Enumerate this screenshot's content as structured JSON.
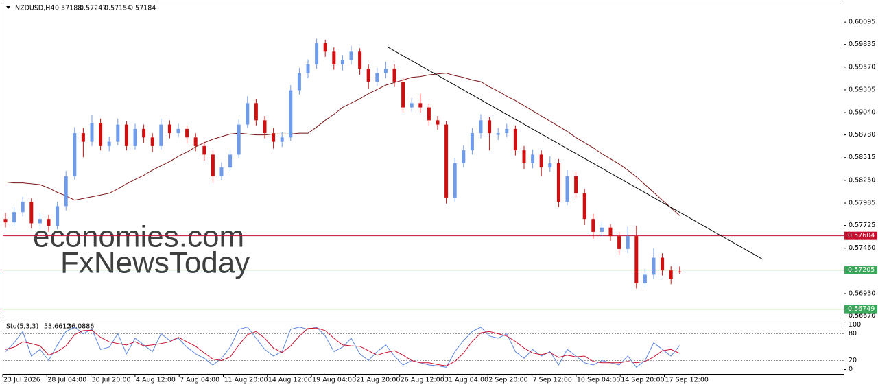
{
  "chart_data": {
    "type": "candlestick",
    "symbol": "NZDUSD,H4",
    "up_color": "#6f9be8",
    "down_color": "#d01010",
    "ylim": [
      0.5665,
      0.6032
    ],
    "yticks": [
      0.60095,
      0.59835,
      {
        "value": 0.5957,
        "label": "0.59570"
      },
      0.59305,
      {
        "value": 0.5904,
        "label": "0.59040"
      },
      {
        "value": 0.5878,
        "label": "0.58780"
      },
      0.58515,
      {
        "value": 0.5825,
        "label": "0.58250"
      },
      0.57985,
      0.57725,
      {
        "value": 0.5746,
        "label": "0.57460"
      },
      {
        "value": 0.5693,
        "label": "0.56930"
      },
      {
        "value": 0.5667,
        "label": "0.56670"
      }
    ],
    "time_labels": [
      "23 Jul 2026",
      "28 Jul 04:00",
      "30 Jul 20:00",
      "4 Aug 12:00",
      "7 Aug 04:00",
      "11 Aug 20:00",
      "14 Aug 12:00",
      "19 Aug 04:00",
      "21 Aug 20:00",
      "26 Aug 12:00",
      "31 Aug 04:00",
      "2 Sep 20:00",
      "7 Sep 12:00",
      "10 Sep 04:00",
      "14 Sep 20:00",
      "17 Sep 12:00"
    ],
    "candles": [
      [
        0.578,
        0.5787,
        0.577,
        0.5776
      ],
      [
        0.5776,
        0.5794,
        0.5772,
        0.5788
      ],
      [
        0.5788,
        0.5806,
        0.5783,
        0.58
      ],
      [
        0.58,
        0.5804,
        0.5769,
        0.5775
      ],
      [
        0.5775,
        0.5787,
        0.5768,
        0.578
      ],
      [
        0.578,
        0.5785,
        0.5765,
        0.5772
      ],
      [
        0.5772,
        0.58,
        0.5768,
        0.5795
      ],
      [
        0.5795,
        0.5836,
        0.579,
        0.583
      ],
      [
        0.583,
        0.5887,
        0.5826,
        0.588
      ],
      [
        0.588,
        0.5886,
        0.5852,
        0.587
      ],
      [
        0.587,
        0.5901,
        0.5865,
        0.5892
      ],
      [
        0.5892,
        0.5897,
        0.586,
        0.5865
      ],
      [
        0.5865,
        0.5876,
        0.5859,
        0.587
      ],
      [
        0.587,
        0.5897,
        0.5866,
        0.589
      ],
      [
        0.589,
        0.5894,
        0.586,
        0.5865
      ],
      [
        0.5865,
        0.5891,
        0.5861,
        0.5885
      ],
      [
        0.5885,
        0.589,
        0.5869,
        0.5875
      ],
      [
        0.5875,
        0.588,
        0.5858,
        0.5865
      ],
      [
        0.5865,
        0.5897,
        0.5861,
        0.589
      ],
      [
        0.589,
        0.5895,
        0.5874,
        0.588
      ],
      [
        0.588,
        0.5891,
        0.5875,
        0.5885
      ],
      [
        0.5885,
        0.5889,
        0.5868,
        0.5875
      ],
      [
        0.5875,
        0.588,
        0.5859,
        0.5865
      ],
      [
        0.5865,
        0.587,
        0.5848,
        0.5855
      ],
      [
        0.5855,
        0.586,
        0.5822,
        0.583
      ],
      [
        0.583,
        0.5846,
        0.5825,
        0.584
      ],
      [
        0.584,
        0.5861,
        0.5836,
        0.5855
      ],
      [
        0.5855,
        0.5896,
        0.5851,
        0.589
      ],
      [
        0.589,
        0.5923,
        0.5886,
        0.5915
      ],
      [
        0.5915,
        0.592,
        0.5889,
        0.5895
      ],
      [
        0.5895,
        0.59,
        0.5874,
        0.588
      ],
      [
        0.588,
        0.5886,
        0.5862,
        0.587
      ],
      [
        0.587,
        0.5881,
        0.5864,
        0.5875
      ],
      [
        0.5875,
        0.5936,
        0.5871,
        0.593
      ],
      [
        0.593,
        0.5956,
        0.5925,
        0.595
      ],
      [
        0.595,
        0.5966,
        0.5944,
        0.596
      ],
      [
        0.596,
        0.599,
        0.5955,
        0.5985
      ],
      [
        0.5985,
        0.5989,
        0.5969,
        0.5975
      ],
      [
        0.5975,
        0.598,
        0.5954,
        0.596
      ],
      [
        0.596,
        0.5971,
        0.5953,
        0.5965
      ],
      [
        0.5965,
        0.5982,
        0.596,
        0.5975
      ],
      [
        0.5975,
        0.5979,
        0.5948,
        0.5955
      ],
      [
        0.5955,
        0.596,
        0.5932,
        0.594
      ],
      [
        0.594,
        0.5956,
        0.5935,
        0.595
      ],
      [
        0.595,
        0.5963,
        0.5944,
        0.5955
      ],
      [
        0.5955,
        0.596,
        0.5934,
        0.594
      ],
      [
        0.594,
        0.5944,
        0.5904,
        0.591
      ],
      [
        0.591,
        0.5921,
        0.5905,
        0.5915
      ],
      [
        0.5915,
        0.5926,
        0.5904,
        0.591
      ],
      [
        0.591,
        0.5914,
        0.5889,
        0.5895
      ],
      [
        0.5895,
        0.59,
        0.5884,
        0.589
      ],
      [
        0.589,
        0.5894,
        0.5798,
        0.5805
      ],
      [
        0.5805,
        0.5851,
        0.58,
        0.5845
      ],
      [
        0.5845,
        0.5866,
        0.584,
        0.586
      ],
      [
        0.586,
        0.5886,
        0.5855,
        0.588
      ],
      [
        0.588,
        0.5902,
        0.5874,
        0.5895
      ],
      [
        0.5895,
        0.5899,
        0.586,
        0.588
      ],
      [
        0.5878,
        0.5886,
        0.5872,
        0.588
      ],
      [
        0.588,
        0.5891,
        0.5875,
        0.5885
      ],
      [
        0.5885,
        0.5889,
        0.5854,
        0.586
      ],
      [
        0.586,
        0.5865,
        0.5838,
        0.5845
      ],
      [
        0.5845,
        0.5861,
        0.5839,
        0.5855
      ],
      [
        0.5855,
        0.586,
        0.583,
        0.584
      ],
      [
        0.584,
        0.5853,
        0.5835,
        0.5845
      ],
      [
        0.5845,
        0.585,
        0.5794,
        0.58
      ],
      [
        0.58,
        0.5837,
        0.5796,
        0.583
      ],
      [
        0.583,
        0.5835,
        0.5804,
        0.581
      ],
      [
        0.581,
        0.5815,
        0.5773,
        0.578
      ],
      [
        0.578,
        0.5786,
        0.5757,
        0.5765
      ],
      [
        0.5765,
        0.5777,
        0.5759,
        0.577
      ],
      [
        0.577,
        0.5774,
        0.5754,
        0.576
      ],
      [
        0.576,
        0.5765,
        0.5738,
        0.5745
      ],
      [
        0.5745,
        0.5771,
        0.574,
        0.576
      ],
      [
        0.576,
        0.5772,
        0.5699,
        0.5705
      ],
      [
        0.5705,
        0.5722,
        0.57,
        0.5715
      ],
      [
        0.5715,
        0.5746,
        0.571,
        0.5735
      ],
      [
        0.5735,
        0.574,
        0.5714,
        0.572
      ],
      [
        0.572,
        0.5725,
        0.5704,
        0.571
      ],
      [
        0.57188,
        0.57247,
        0.57154,
        0.57184
      ]
    ],
    "ma": {
      "color": "#7a1414",
      "values": [
        0.5823,
        0.5822,
        0.5822,
        0.5821,
        0.582,
        0.5816,
        0.5811,
        0.5807,
        0.5802,
        0.5804,
        0.5806,
        0.5808,
        0.581,
        0.5815,
        0.5821,
        0.5826,
        0.5831,
        0.5837,
        0.5842,
        0.5847,
        0.5853,
        0.5858,
        0.5864,
        0.5869,
        0.5873,
        0.5876,
        0.5879,
        0.588,
        0.5879,
        0.5878,
        0.5878,
        0.5879,
        0.5879,
        0.5879,
        0.588,
        0.588,
        0.5887,
        0.5895,
        0.5902,
        0.591,
        0.5915,
        0.592,
        0.5926,
        0.5931,
        0.5936,
        0.5939,
        0.5942,
        0.5945,
        0.5946,
        0.5948,
        0.5949,
        0.595,
        0.5947,
        0.5945,
        0.5942,
        0.594,
        0.5934,
        0.5929,
        0.5923,
        0.5918,
        0.5912,
        0.5906,
        0.59,
        0.5894,
        0.5888,
        0.5882,
        0.5875,
        0.5869,
        0.5863,
        0.5856,
        0.585,
        0.5844,
        0.5837,
        0.5829,
        0.582,
        0.5811,
        0.5802,
        0.5793,
        0.5784
      ]
    },
    "trendline": {
      "color": "#000000",
      "values": [
        0.598,
        0.5733
      ]
    },
    "levels": [
      {
        "value": 0.57604,
        "color": "#c8102e"
      },
      {
        "value": 0.57205,
        "color": "#3aa85a"
      },
      {
        "value": 0.56749,
        "color": "#3aa85a"
      }
    ],
    "watermark": [
      "economies.com",
      "FxNewsToday"
    ],
    "stoch": {
      "title": "Sto(5,3,3)",
      "ylim": [
        -10,
        110
      ],
      "yticks": [
        100,
        80,
        20,
        0
      ],
      "k": {
        "color": "#5a86e0",
        "values": [
          40,
          60,
          85,
          30,
          45,
          20,
          55,
          85,
          95,
          80,
          90,
          45,
          50,
          80,
          35,
          70,
          55,
          40,
          80,
          65,
          70,
          50,
          35,
          25,
          10,
          25,
          50,
          90,
          95,
          70,
          45,
          30,
          40,
          90,
          95,
          90,
          95,
          75,
          40,
          50,
          70,
          35,
          20,
          40,
          55,
          30,
          10,
          20,
          15,
          10,
          8,
          5,
          40,
          65,
          85,
          95,
          75,
          70,
          80,
          40,
          25,
          45,
          30,
          40,
          10,
          45,
          30,
          15,
          10,
          20,
          15,
          10,
          30,
          5,
          20,
          60,
          45,
          30,
          53.6612
        ]
      },
      "d": {
        "color": "#c8102e",
        "values": [
          45,
          50,
          62,
          58,
          53,
          32,
          40,
          53,
          78,
          87,
          88,
          72,
          62,
          58,
          55,
          62,
          53,
          55,
          58,
          62,
          72,
          62,
          52,
          37,
          23,
          20,
          28,
          55,
          78,
          85,
          70,
          48,
          38,
          53,
          75,
          92,
          93,
          87,
          70,
          55,
          53,
          52,
          42,
          32,
          38,
          42,
          32,
          20,
          15,
          15,
          11,
          8,
          18,
          37,
          63,
          82,
          85,
          80,
          75,
          63,
          48,
          37,
          33,
          38,
          27,
          32,
          28,
          30,
          18,
          15,
          15,
          15,
          18,
          15,
          18,
          28,
          42,
          45,
          36.0886
        ]
      }
    }
  }
}
